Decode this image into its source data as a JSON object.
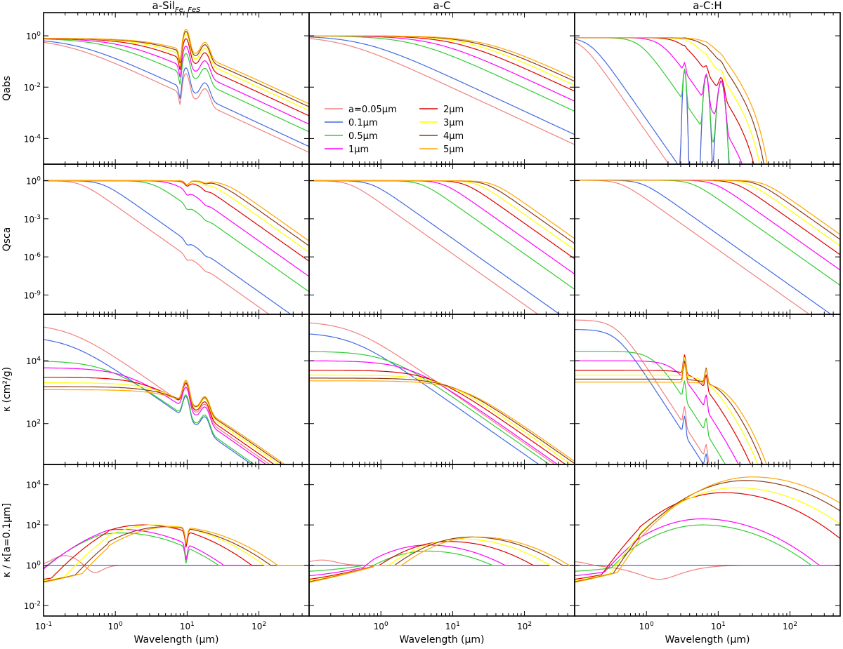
{
  "chart_data": {
    "type": "line",
    "figure_layout": "4 rows x 3 columns of log-log line plots",
    "column_titles": [
      {
        "text": "a-Sil",
        "subscript": "Fe, FeS"
      },
      {
        "text": "a-C",
        "subscript": ""
      },
      {
        "text": "a-C:H",
        "subscript": ""
      }
    ],
    "row_ylabels": [
      "Qabs",
      "Qsca",
      "κ (cm²/g)",
      "κ / κ[a=0.1μm]"
    ],
    "xlabel": "Wavelength (μm)",
    "x_scale": "log",
    "y_scale": "log",
    "xlim": [
      0.1,
      500
    ],
    "row_ylims": [
      [
        1e-05,
        8
      ],
      [
        3e-11,
        20
      ],
      [
        5,
        300000.0
      ],
      [
        0.003,
        100000.0
      ]
    ],
    "x_tick_labels": [
      {
        "value": 0.1,
        "base": "10",
        "exp": "-1"
      },
      {
        "value": 1,
        "base": "10",
        "exp": "0"
      },
      {
        "value": 10,
        "base": "10",
        "exp": "1"
      },
      {
        "value": 100,
        "base": "10",
        "exp": "2"
      }
    ],
    "row_y_ticks": [
      [
        {
          "value": 1,
          "base": "10",
          "exp": "0"
        },
        {
          "value": 0.01,
          "base": "10",
          "exp": "-2"
        },
        {
          "value": 0.0001,
          "base": "10",
          "exp": "-4"
        }
      ],
      [
        {
          "value": 1,
          "base": "10",
          "exp": "0"
        },
        {
          "value": 0.001,
          "base": "10",
          "exp": "-3"
        },
        {
          "value": 1e-06,
          "base": "10",
          "exp": "-6"
        },
        {
          "value": 1e-09,
          "base": "10",
          "exp": "-9"
        }
      ],
      [
        {
          "value": 10000,
          "base": "10",
          "exp": "4"
        },
        {
          "value": 100,
          "base": "10",
          "exp": "2"
        }
      ],
      [
        {
          "value": 10000,
          "base": "10",
          "exp": "4"
        },
        {
          "value": 100,
          "base": "10",
          "exp": "2"
        },
        {
          "value": 1,
          "base": "10",
          "exp": "0"
        },
        {
          "value": 0.01,
          "base": "10",
          "exp": "-2"
        }
      ]
    ],
    "legend": {
      "location": "Qabs a-C panel, lower-left",
      "entries": [
        {
          "label": "a=0.05μm",
          "color": "#f08080"
        },
        {
          "label": "0.1μm",
          "color": "#4169e1"
        },
        {
          "label": "0.5μm",
          "color": "#33cc33"
        },
        {
          "label": "1μm",
          "color": "#ff00ff"
        },
        {
          "label": "2μm",
          "color": "#dd0000"
        },
        {
          "label": "3μm",
          "color": "#ffff00"
        },
        {
          "label": "4μm",
          "color": "#8b3a1a"
        },
        {
          "label": "5μm",
          "color": "#ffa500"
        }
      ]
    },
    "series_grain_sizes_um": [
      0.05,
      0.1,
      0.5,
      1,
      2,
      3,
      4,
      5
    ],
    "representative_values": {
      "qabs_long_wavelength_at_500um": {
        "a-Sil": [
          1e-05,
          4e-05,
          0.0002,
          0.0005,
          0.001,
          0.0016,
          0.0022,
          0.003
        ],
        "a-C": [
          7e-05,
          0.00013,
          0.0007,
          0.0015,
          0.003,
          0.0048,
          0.0064,
          0.008
        ]
      },
      "kappa_short_wavelength_plateau": {
        "a-Sil": [
          150000,
          60000,
          10000,
          6000,
          3000,
          2000,
          1500,
          1200
        ],
        "a-C": [
          180000,
          80000,
          20000,
          10000,
          5000,
          3500,
          2800,
          2300
        ],
        "a-C:H": [
          200000,
          100000,
          20000,
          10000,
          5000,
          3500,
          2600,
          2100
        ]
      },
      "kappa_ratio_peak": {
        "a-Sil": [
          3,
          1,
          40,
          60,
          100,
          100,
          80,
          80
        ],
        "a-C": [
          1,
          1,
          5,
          10,
          15,
          20,
          25,
          25
        ],
        "a-C:H": [
          1,
          1,
          100,
          200,
          4000,
          7000,
          16000,
          24000
        ]
      }
    }
  }
}
